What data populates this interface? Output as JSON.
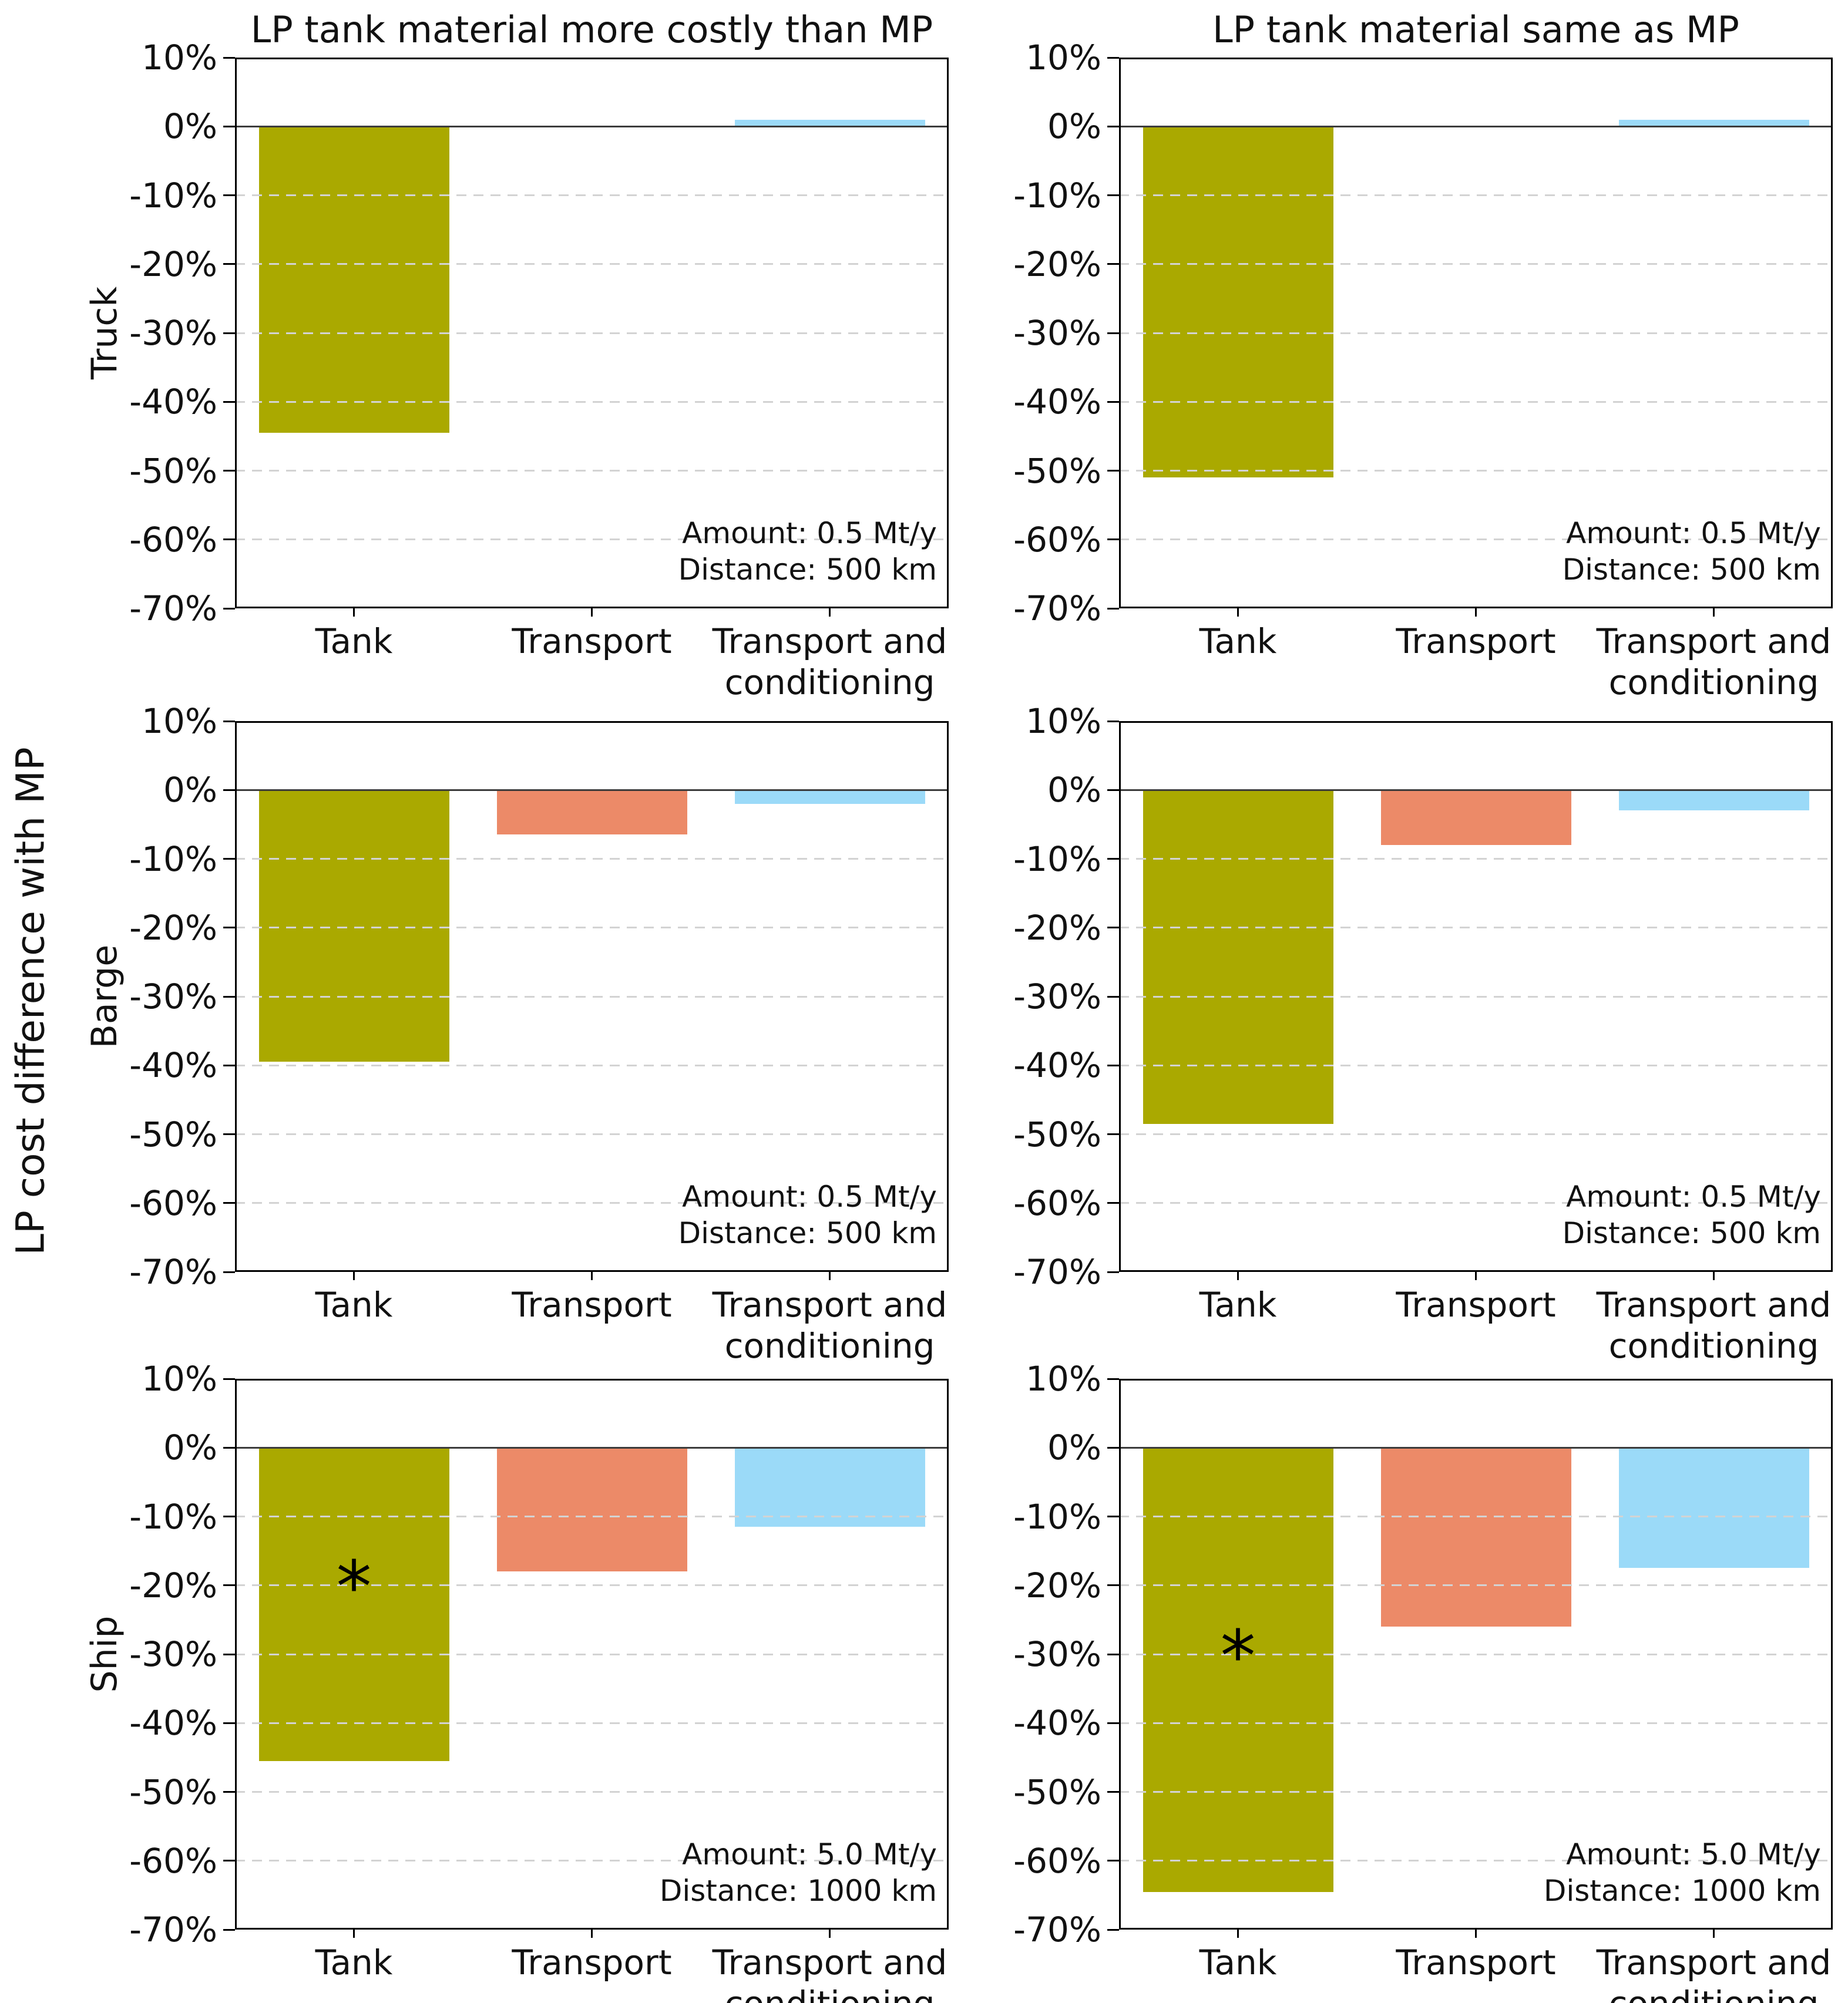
{
  "figure": {
    "ylabel": "LP cost difference with MP",
    "column_titles": [
      "LP tank material more costly than MP",
      "LP tank material same as MP"
    ],
    "row_labels": [
      "Truck",
      "Barge",
      "Ship"
    ]
  },
  "chart_data": {
    "type": "bar",
    "categories": [
      "Tank",
      "Transport",
      "Transport and\nconditioning"
    ],
    "bar_colors": [
      "#aaa900",
      "#ec8a68",
      "#9bdaf8"
    ],
    "ylim": [
      -70,
      10
    ],
    "ytick_labels": [
      "10%",
      "0%",
      "-10%",
      "-20%",
      "-30%",
      "-40%",
      "-50%",
      "-60%",
      "-70%"
    ],
    "ytick_values": [
      10,
      0,
      -10,
      -20,
      -30,
      -40,
      -50,
      -60,
      -70
    ],
    "grid": true,
    "grid_style": "dashed",
    "legend": "none",
    "subplots": [
      {
        "row": "Truck",
        "column": "LP tank material more costly than MP",
        "values": [
          -44.5,
          0,
          1.0
        ],
        "annotation": [
          "Amount: 0.5 Mt/y",
          "Distance: 500 km"
        ],
        "marker": null
      },
      {
        "row": "Truck",
        "column": "LP tank material same as MP",
        "values": [
          -51.0,
          0,
          1.0
        ],
        "annotation": [
          "Amount: 0.5 Mt/y",
          "Distance: 500 km"
        ],
        "marker": null
      },
      {
        "row": "Barge",
        "column": "LP tank material more costly than MP",
        "values": [
          -39.5,
          -6.5,
          -2.0
        ],
        "annotation": [
          "Amount: 0.5 Mt/y",
          "Distance: 500 km"
        ],
        "marker": null
      },
      {
        "row": "Barge",
        "column": "LP tank material same as MP",
        "values": [
          -48.5,
          -8.0,
          -3.0
        ],
        "annotation": [
          "Amount: 0.5 Mt/y",
          "Distance: 500 km"
        ],
        "marker": null
      },
      {
        "row": "Ship",
        "column": "LP tank material more costly than MP",
        "values": [
          -45.5,
          -18.0,
          -11.5
        ],
        "annotation": [
          "Amount: 5.0 Mt/y",
          "Distance: 1000 km"
        ],
        "marker": {
          "category": "Tank",
          "value": -21,
          "symbol": "*"
        }
      },
      {
        "row": "Ship",
        "column": "LP tank material same as MP",
        "values": [
          -64.5,
          -26.0,
          -17.5
        ],
        "annotation": [
          "Amount: 5.0 Mt/y",
          "Distance: 1000 km"
        ],
        "marker": {
          "category": "Tank",
          "value": -31,
          "symbol": "*"
        }
      }
    ]
  }
}
